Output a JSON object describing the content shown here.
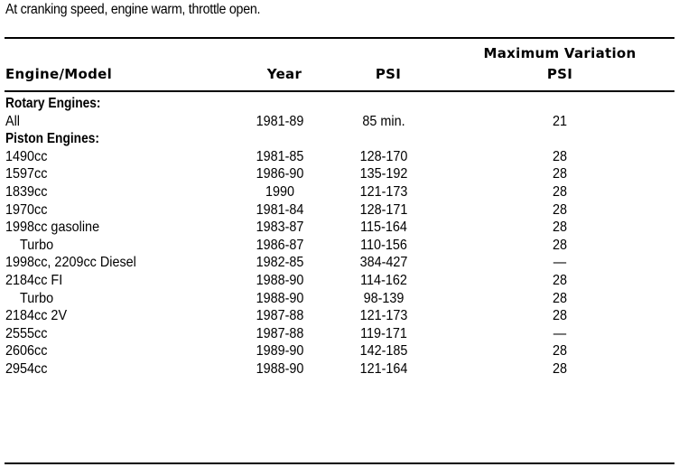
{
  "note": "At cranking speed, engine warm, throttle open.",
  "headers": {
    "model": "Engine/Model",
    "year": "Year",
    "psi": "PSI",
    "max_variation_line1": "Maximum Variation",
    "max_variation_line2": "PSI"
  },
  "rows": [
    {
      "type": "section",
      "model": "Rotary Engines:",
      "year": "",
      "psi": "",
      "variation": ""
    },
    {
      "type": "data",
      "model": "All",
      "year": "1981-89",
      "psi": "85 min.",
      "variation": "21"
    },
    {
      "type": "section",
      "model": "Piston Engines:",
      "year": "",
      "psi": "",
      "variation": ""
    },
    {
      "type": "data",
      "model": "1490cc",
      "year": "1981-85",
      "psi": "128-170",
      "variation": "28"
    },
    {
      "type": "data",
      "model": "1597cc",
      "year": "1986-90",
      "psi": "135-192",
      "variation": "28"
    },
    {
      "type": "data",
      "model": "1839cc",
      "year": "1990",
      "psi": "121-173",
      "variation": "28"
    },
    {
      "type": "data",
      "model": "1970cc",
      "year": "1981-84",
      "psi": "128-171",
      "variation": "28"
    },
    {
      "type": "data",
      "model": "1998cc gasoline",
      "year": "1983-87",
      "psi": "115-164",
      "variation": "28"
    },
    {
      "type": "sub",
      "model": "Turbo",
      "year": "1986-87",
      "psi": "110-156",
      "variation": "28"
    },
    {
      "type": "data",
      "model": "1998cc, 2209cc Diesel",
      "year": "1982-85",
      "psi": "384-427",
      "variation": "—"
    },
    {
      "type": "data",
      "model": "2184cc FI",
      "year": "1988-90",
      "psi": "114-162",
      "variation": "28"
    },
    {
      "type": "sub",
      "model": "Turbo",
      "year": "1988-90",
      "psi": "98-139",
      "variation": "28"
    },
    {
      "type": "data",
      "model": "2184cc 2V",
      "year": "1987-88",
      "psi": "121-173",
      "variation": "28"
    },
    {
      "type": "data",
      "model": "2555cc",
      "year": "1987-88",
      "psi": "119-171",
      "variation": "—"
    },
    {
      "type": "data",
      "model": "2606cc",
      "year": "1989-90",
      "psi": "142-185",
      "variation": "28"
    },
    {
      "type": "data",
      "model": "2954cc",
      "year": "1988-90",
      "psi": "121-164",
      "variation": "28"
    }
  ]
}
